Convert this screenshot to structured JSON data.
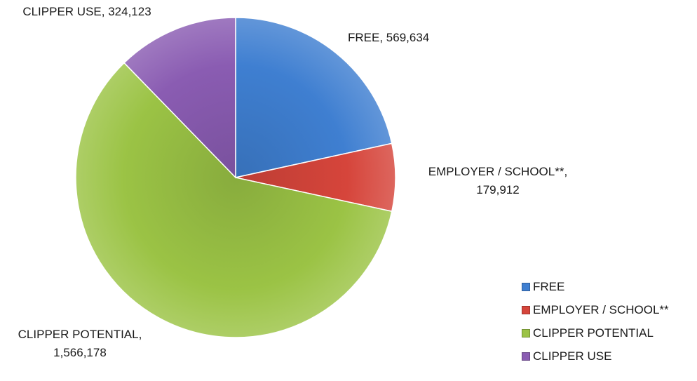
{
  "chart_data": {
    "type": "pie",
    "title": "",
    "slices": [
      {
        "label": "FREE",
        "value": 569634,
        "value_text": "569,634",
        "color": "#3f7fd1"
      },
      {
        "label": "EMPLOYER / SCHOOL**",
        "value": 179912,
        "value_text": "179,912",
        "color": "#d6453b"
      },
      {
        "label": "CLIPPER POTENTIAL",
        "value": 1566178,
        "value_text": "1,566,178",
        "color": "#9bc345"
      },
      {
        "label": "CLIPPER USE",
        "value": 324123,
        "value_text": "324,123",
        "color": "#8a5cb2"
      }
    ],
    "data_labels": {
      "free": "FREE,  569,634",
      "employer_line1": "EMPLOYER / SCHOOL**,",
      "employer_line2": "179,912",
      "potential_line1": "CLIPPER POTENTIAL,",
      "potential_line2": "1,566,178",
      "use": "CLIPPER USE,  324,123"
    },
    "legend": {
      "placement": "bottom-right",
      "entries": [
        "FREE",
        "EMPLOYER / SCHOOL**",
        "CLIPPER POTENTIAL",
        "CLIPPER USE"
      ]
    },
    "start_angle": "12 o'clock",
    "direction": "clockwise"
  }
}
